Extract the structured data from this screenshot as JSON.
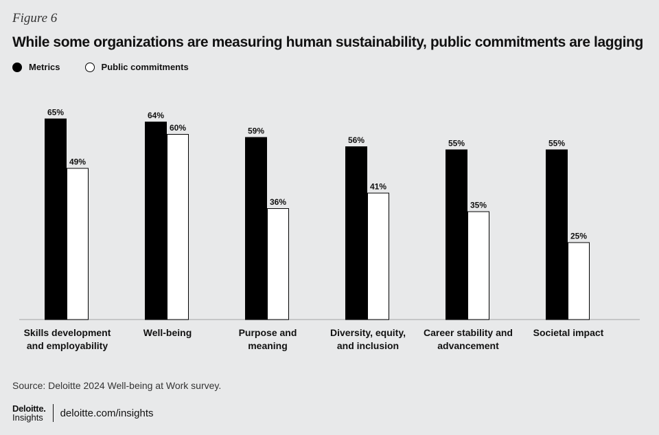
{
  "figure_label": "Figure 6",
  "title": "While some organizations are measuring human sustainability, public commitments are lagging",
  "legend": {
    "metrics": "Metrics",
    "public": "Public commitments"
  },
  "colors": {
    "metrics": "#000000",
    "public": "#ffffff",
    "background": "#e8e9ea"
  },
  "chart_data": {
    "type": "bar",
    "categories": [
      [
        "Skills development",
        "and employability"
      ],
      [
        "Well-being"
      ],
      [
        "Purpose and",
        "meaning"
      ],
      [
        "Diversity, equity,",
        "and inclusion"
      ],
      [
        "Career stability and",
        "advancement"
      ],
      [
        "Societal impact"
      ]
    ],
    "series": [
      {
        "name": "Metrics",
        "values": [
          65,
          64,
          59,
          56,
          55,
          55
        ],
        "labels": [
          "65%",
          "64%",
          "59%",
          "56%",
          "55%",
          "55%"
        ]
      },
      {
        "name": "Public commitments",
        "values": [
          49,
          60,
          36,
          41,
          35,
          25
        ],
        "labels": [
          "49%",
          "60%",
          "36%",
          "41%",
          "35%",
          "25%"
        ]
      }
    ],
    "ylim": [
      0,
      100
    ],
    "title": "While some organizations are measuring human sustainability, public commitments are lagging",
    "xlabel": "",
    "ylabel": "",
    "legend_position": "top-left"
  },
  "source": "Source: Deloitte 2024 Well-being at Work survey.",
  "footer": {
    "logo_main": "Deloitte",
    "logo_dot": ".",
    "logo_sub": "Insights",
    "site": "deloitte.com/insights"
  }
}
